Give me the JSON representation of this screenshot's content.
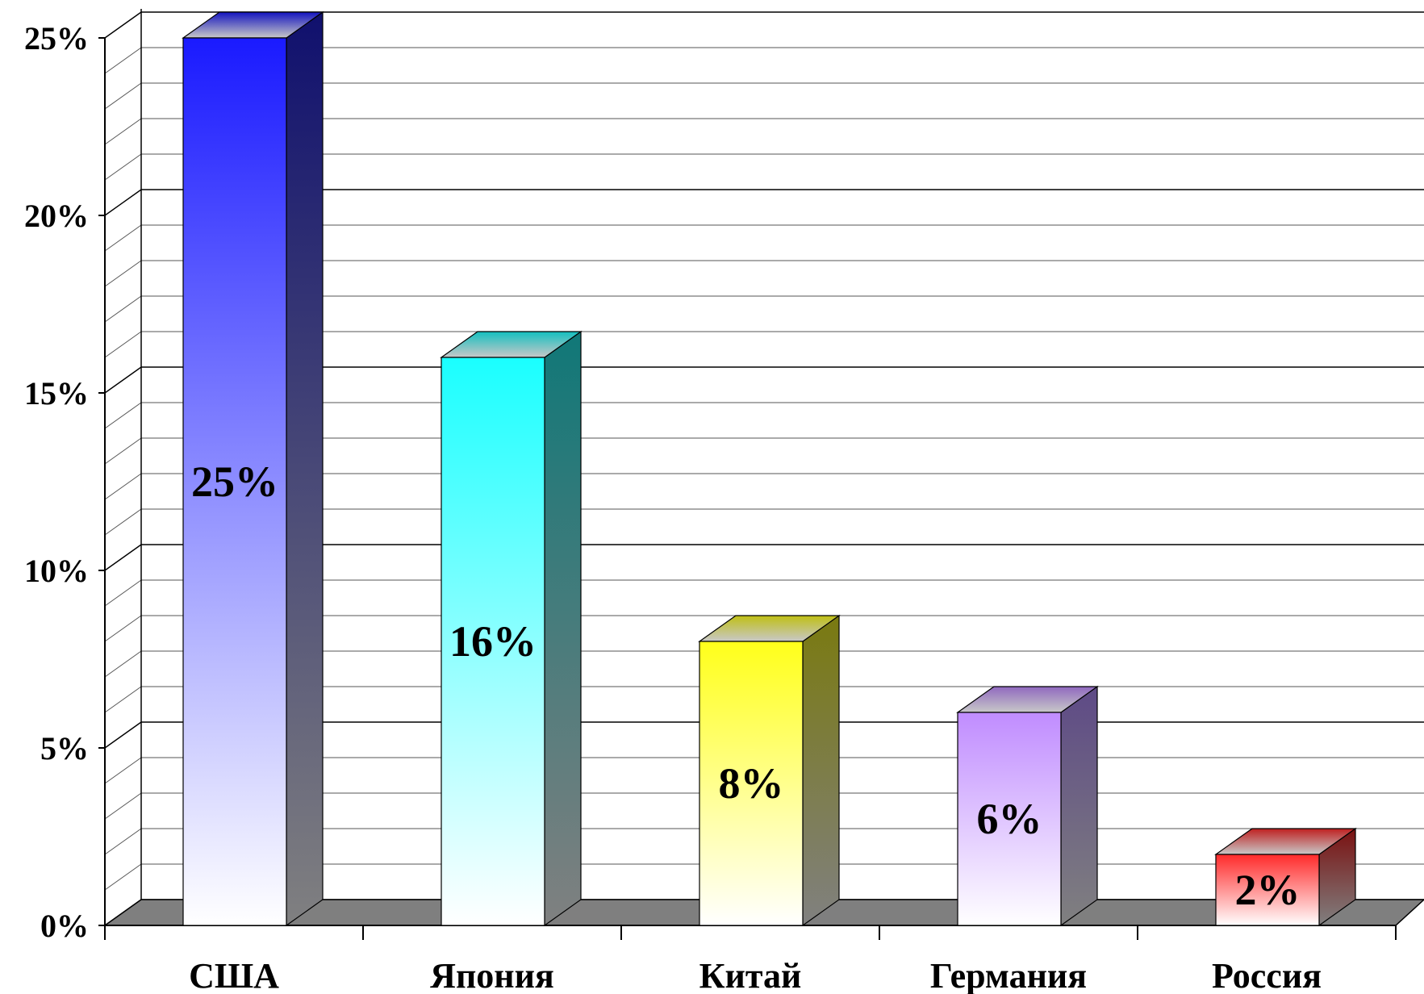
{
  "chart_data": {
    "type": "bar",
    "title": "",
    "xlabel": "",
    "ylabel": "",
    "categories": [
      "США",
      "Япония",
      "Китай",
      "Германия",
      "Россия"
    ],
    "values": [
      25,
      16,
      8,
      6,
      2
    ],
    "data_labels": [
      "25%",
      "16%",
      "8%",
      "6%",
      "2%"
    ],
    "ylim": [
      0,
      25
    ],
    "y_ticks": [
      0,
      5,
      10,
      15,
      20,
      25
    ],
    "y_tick_labels": [
      "0%",
      "5%",
      "10%",
      "15%",
      "20%",
      "25%"
    ],
    "grid": true,
    "style": "3d",
    "bar_colors": [
      "#1a1aff",
      "#1affff",
      "#ffff1a",
      "#c08cff",
      "#ff2a2a"
    ],
    "side_colors": [
      "#10106e",
      "#107878",
      "#7a7a10",
      "#5e4a86",
      "#7a1010"
    ],
    "floor_color": "#7f7f7f"
  }
}
